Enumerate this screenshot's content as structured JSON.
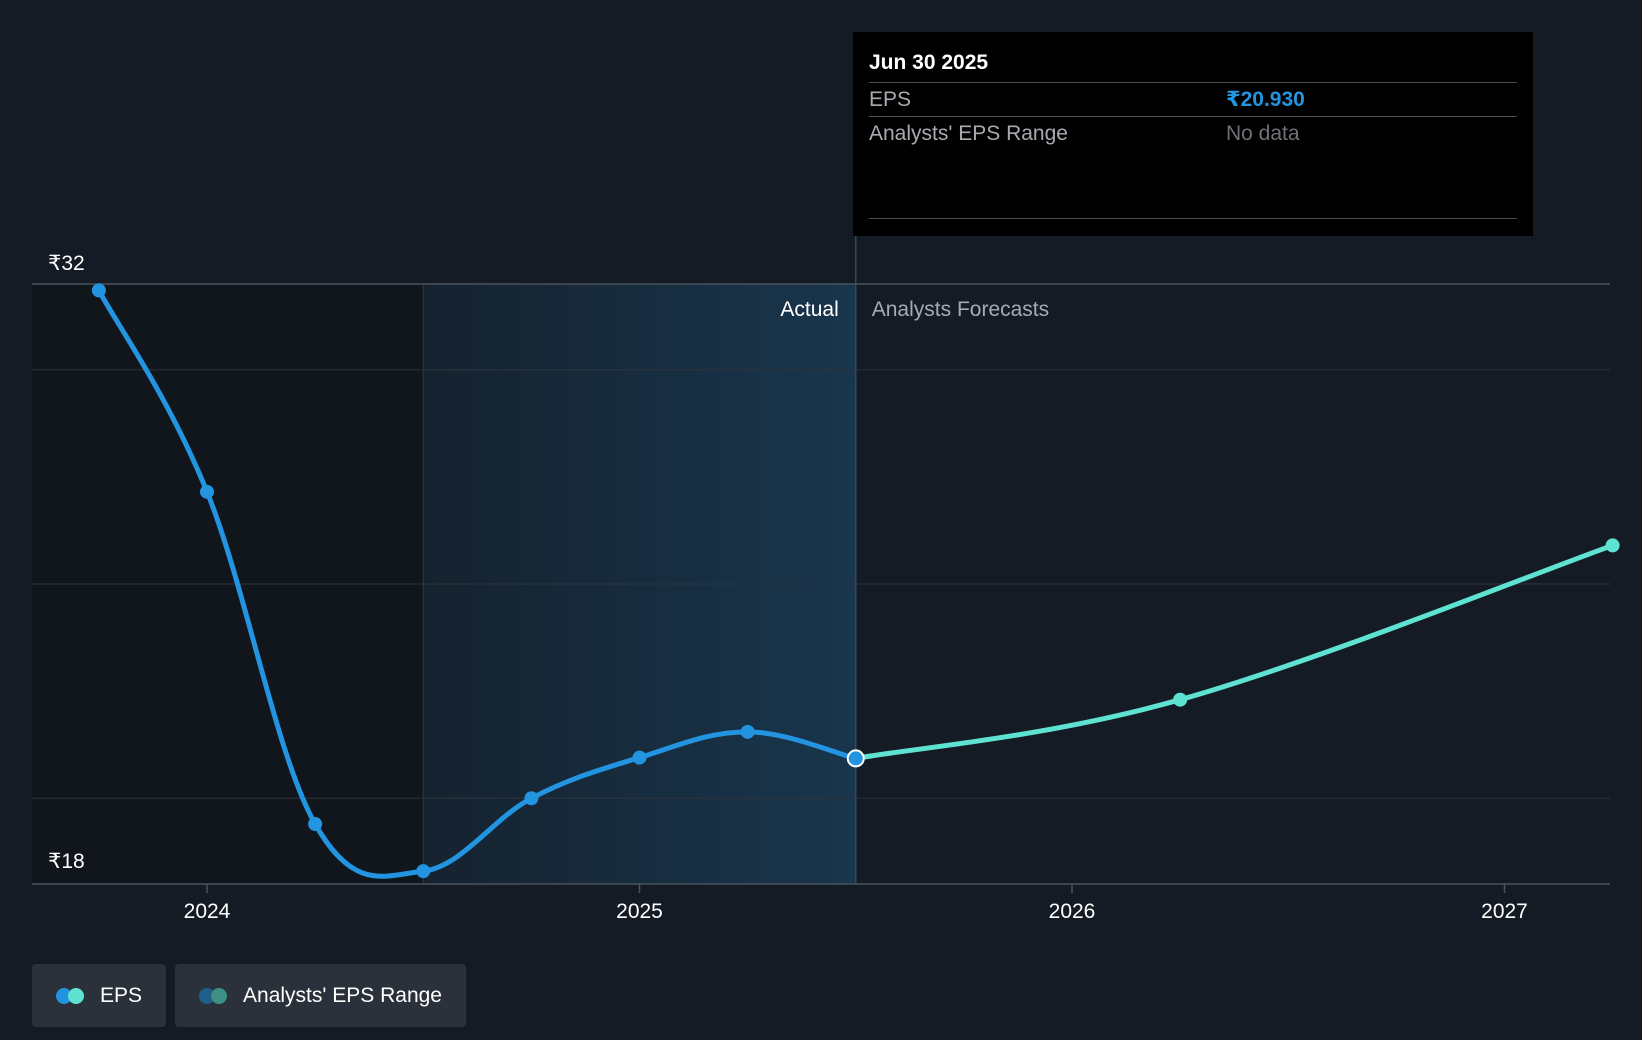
{
  "chart_data": {
    "type": "line",
    "y_axis": {
      "min": 18,
      "max": 32,
      "top_label": "₹32",
      "bottom_label": "₹18",
      "gridlines": [
        18,
        20,
        25,
        30,
        32
      ]
    },
    "x_axis": {
      "ticks": [
        {
          "value": 2024,
          "label": "2024"
        },
        {
          "value": 2025,
          "label": "2025"
        },
        {
          "value": 2026,
          "label": "2026"
        },
        {
          "value": 2027,
          "label": "2027"
        }
      ],
      "range": [
        2023.6,
        2027.25
      ]
    },
    "regions": {
      "actual_label": "Actual",
      "forecast_label": "Analysts Forecasts",
      "highlight_start": 2024.5,
      "divider": 2025.5
    },
    "series": [
      {
        "name": "EPS",
        "color": "#2394df",
        "points": [
          {
            "x": 2023.75,
            "y": 31.85
          },
          {
            "x": 2024.0,
            "y": 27.15
          },
          {
            "x": 2024.25,
            "y": 19.4
          },
          {
            "x": 2024.5,
            "y": 18.3
          },
          {
            "x": 2024.75,
            "y": 20.0
          },
          {
            "x": 2025.0,
            "y": 20.95
          },
          {
            "x": 2025.25,
            "y": 21.55
          },
          {
            "x": 2025.5,
            "y": 20.93
          }
        ]
      },
      {
        "name": "EPS",
        "color": "#5ee3d2",
        "forecast": true,
        "points": [
          {
            "x": 2025.5,
            "y": 20.93
          },
          {
            "x": 2026.25,
            "y": 22.3
          },
          {
            "x": 2027.25,
            "y": 25.9
          }
        ]
      }
    ]
  },
  "tooltip": {
    "date": "Jun 30 2025",
    "eps_label": "EPS",
    "eps_value": "₹20.930",
    "range_label": "Analysts' EPS Range",
    "range_value": "No data"
  },
  "legend": [
    {
      "label": "EPS",
      "colors": [
        "#2394df",
        "#5ee3d2"
      ]
    },
    {
      "label": "Analysts' EPS Range",
      "colors": [
        "#1f5f8a",
        "#3e8f86"
      ]
    }
  ]
}
